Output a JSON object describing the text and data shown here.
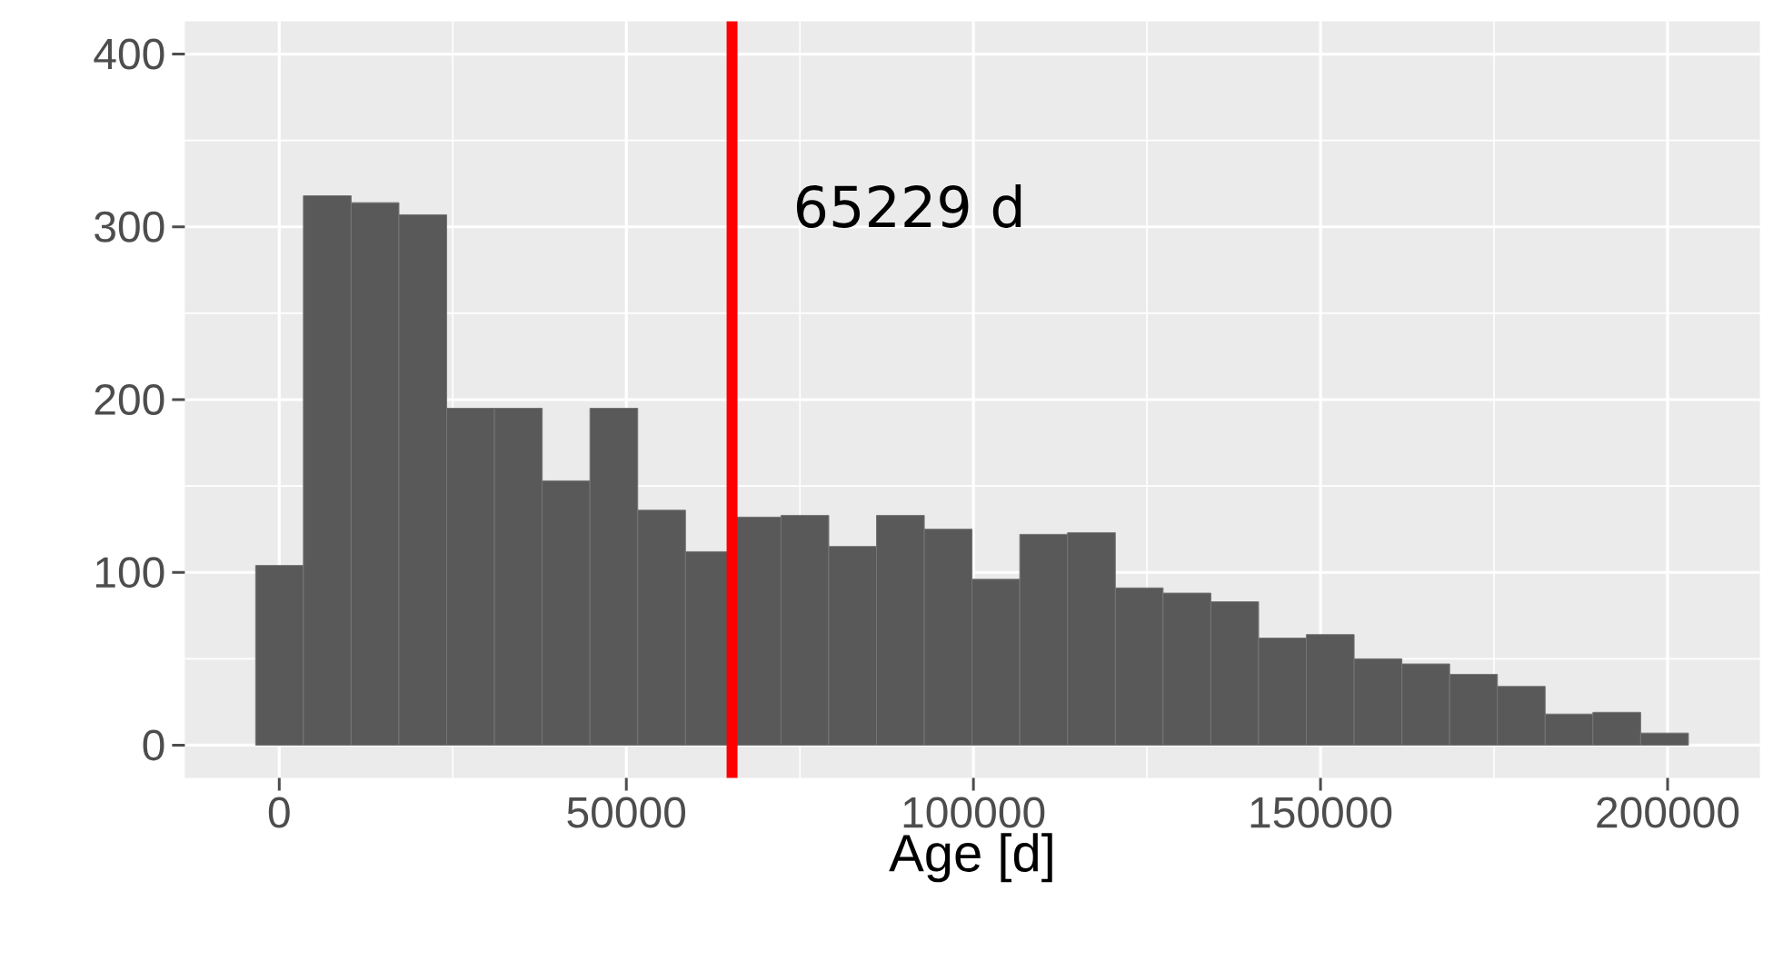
{
  "chart_data": {
    "type": "histogram",
    "xlabel": "Age [d]",
    "bins": [
      -3400,
      3480,
      10360,
      17240,
      24120,
      31000,
      37880,
      44760,
      51640,
      58520,
      65400,
      72280,
      79160,
      86040,
      92920,
      99800,
      106680,
      113560,
      120440,
      127320,
      134200,
      141080,
      147960,
      154840,
      161720,
      168600,
      175480,
      182360,
      189240,
      196120,
      203000
    ],
    "values": [
      104,
      318,
      314,
      307,
      195,
      195,
      153,
      195,
      136,
      112,
      132,
      133,
      115,
      133,
      125,
      96,
      122,
      123,
      91,
      88,
      83,
      62,
      64,
      50,
      47,
      41,
      34,
      18,
      19,
      7
    ],
    "color": "#595959",
    "xlim": [
      -13600,
      213300
    ],
    "ylim": [
      -19,
      419
    ],
    "xticks": [
      0,
      50000,
      100000,
      150000,
      200000
    ],
    "yticks": [
      0,
      100,
      200,
      300,
      400
    ],
    "grid": true,
    "ref_lines": [
      {
        "axis": "x",
        "value": 65229,
        "label": "65229 d",
        "color": "#ff0000"
      }
    ]
  }
}
